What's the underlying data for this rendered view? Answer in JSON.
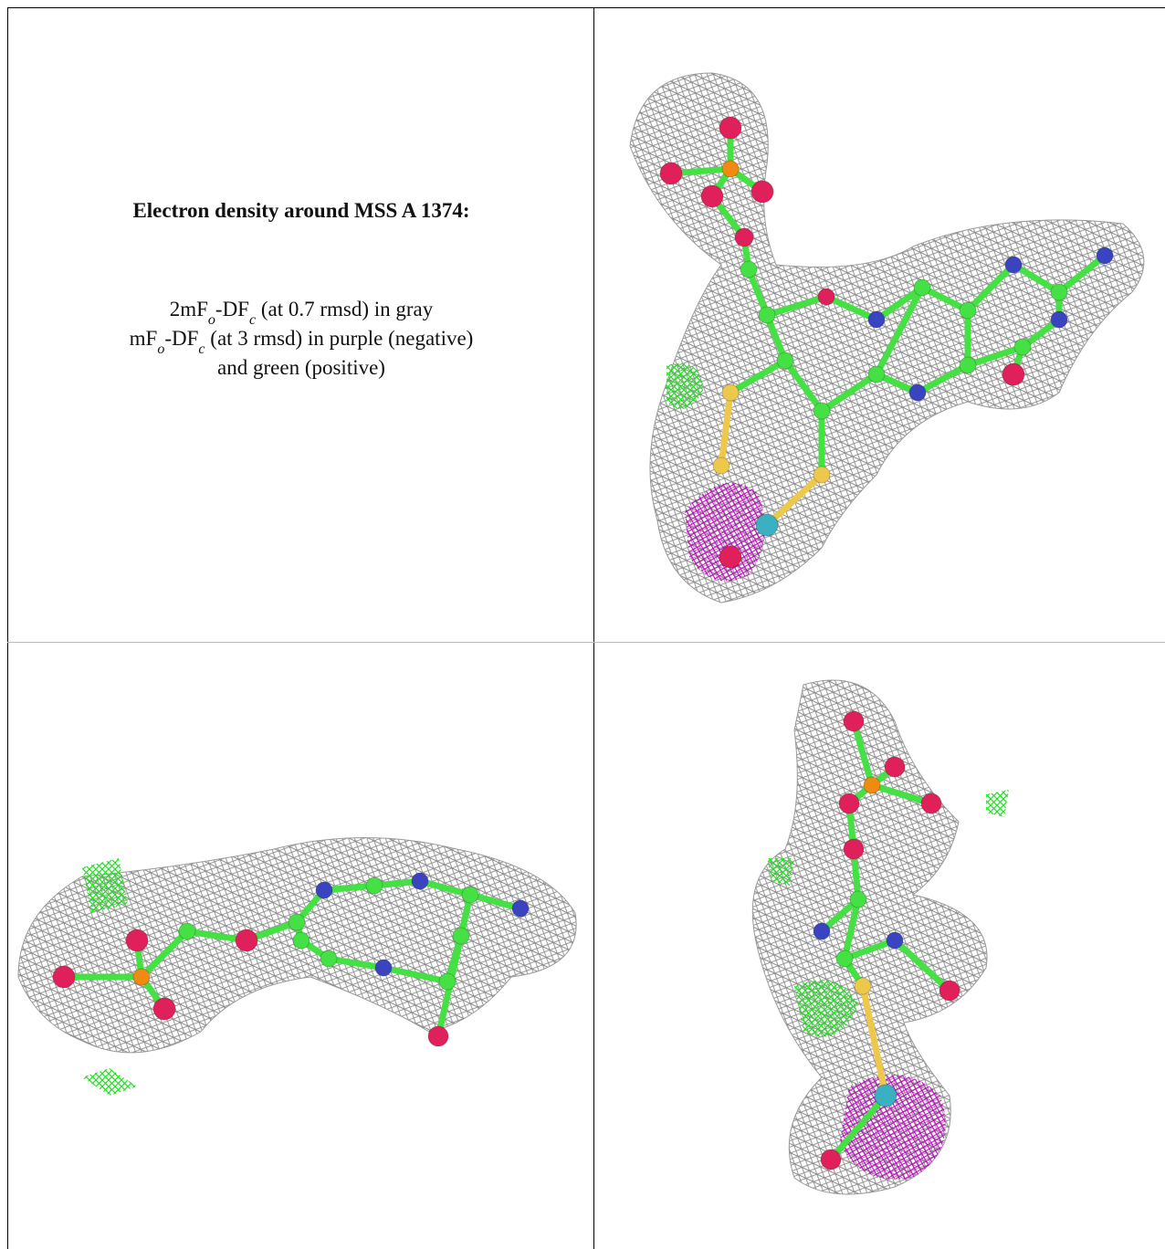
{
  "caption": {
    "title": "Electron density around MSS A 1374:",
    "lines": [
      [
        {
          "text": "2mF"
        },
        {
          "sub": "o"
        },
        {
          "text": "-DF"
        },
        {
          "sub": "c"
        },
        {
          "text": " (at 0.7 rmsd) in gray"
        }
      ],
      [
        {
          "text": "mF"
        },
        {
          "sub": "o"
        },
        {
          "text": "-DF"
        },
        {
          "sub": "c"
        },
        {
          "text": " (at 3 rmsd) in purple (negative)"
        }
      ],
      [
        {
          "text": "and green (positive)"
        }
      ]
    ]
  }
}
